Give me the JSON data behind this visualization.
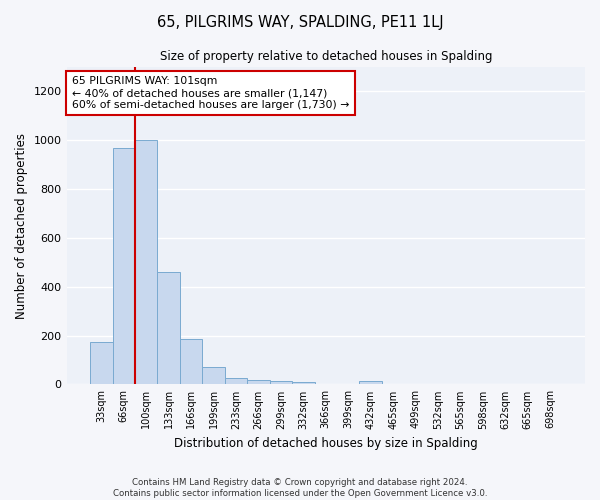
{
  "title": "65, PILGRIMS WAY, SPALDING, PE11 1LJ",
  "subtitle": "Size of property relative to detached houses in Spalding",
  "xlabel": "Distribution of detached houses by size in Spalding",
  "ylabel": "Number of detached properties",
  "categories": [
    "33sqm",
    "66sqm",
    "100sqm",
    "133sqm",
    "166sqm",
    "199sqm",
    "233sqm",
    "266sqm",
    "299sqm",
    "332sqm",
    "366sqm",
    "399sqm",
    "432sqm",
    "465sqm",
    "499sqm",
    "532sqm",
    "565sqm",
    "598sqm",
    "632sqm",
    "665sqm",
    "698sqm"
  ],
  "values": [
    175,
    970,
    1000,
    460,
    185,
    70,
    25,
    20,
    15,
    10,
    0,
    0,
    12,
    0,
    0,
    0,
    0,
    0,
    0,
    0,
    0
  ],
  "bar_color": "#c8d8ee",
  "bar_edge_color": "#7aaad0",
  "red_line_x": 1.5,
  "annotation_line1": "65 PILGRIMS WAY: 101sqm",
  "annotation_line2": "← 40% of detached houses are smaller (1,147)",
  "annotation_line3": "60% of semi-detached houses are larger (1,730) →",
  "ylim": [
    0,
    1300
  ],
  "yticks": [
    0,
    200,
    400,
    600,
    800,
    1000,
    1200
  ],
  "background_color": "#edf1f8",
  "grid_color": "#ffffff",
  "footer_line1": "Contains HM Land Registry data © Crown copyright and database right 2024.",
  "footer_line2": "Contains public sector information licensed under the Open Government Licence v3.0."
}
